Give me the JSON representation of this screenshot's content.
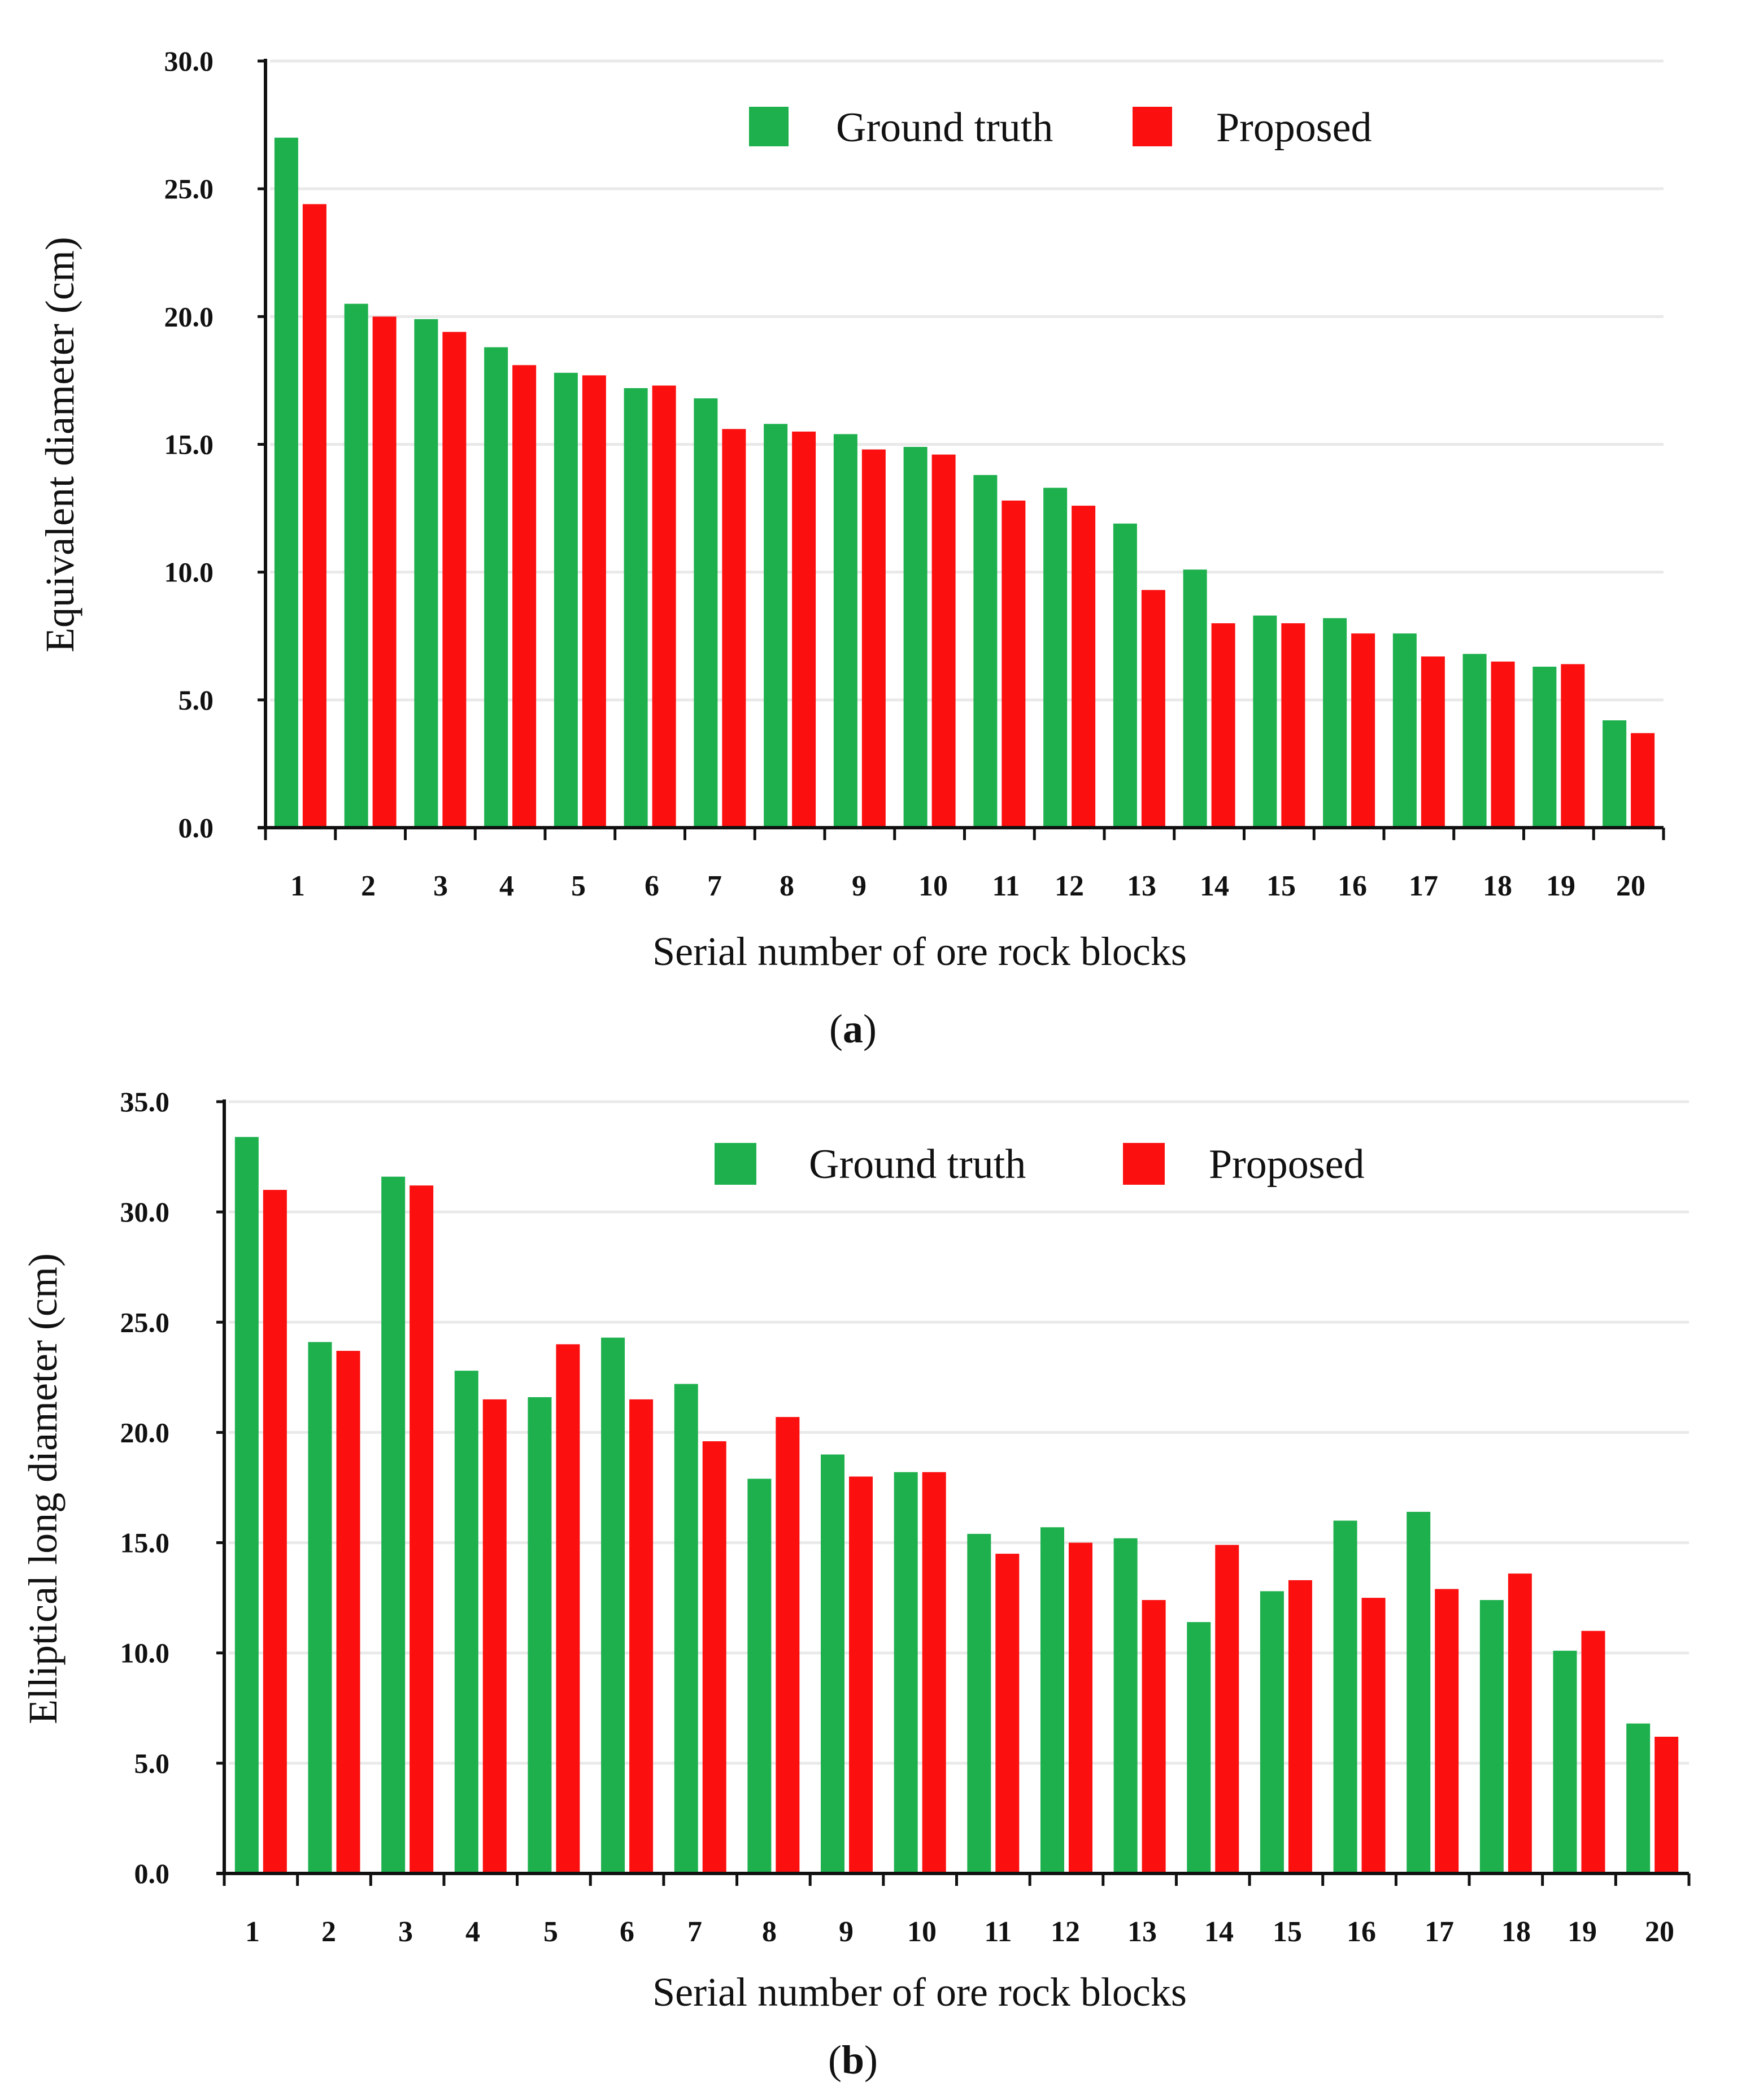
{
  "colors": {
    "ground_truth": "#1db04d",
    "proposed": "#fb0f0f",
    "grid": "#e9e9e9",
    "axis": "#111111"
  },
  "chart_data": [
    {
      "type": "bar",
      "panel_label": "a",
      "title": "",
      "xlabel": "Serial number of ore rock blocks",
      "ylabel": "Equivalent diameter (cm)",
      "ylim": [
        0,
        30
      ],
      "yticks": [
        "0.0",
        "5.0",
        "10.0",
        "15.0",
        "20.0",
        "25.0",
        "30.0"
      ],
      "grid": true,
      "legend_position": "top-right",
      "categories": [
        "1",
        "2",
        "3",
        "4",
        "5",
        "6",
        "7",
        "8",
        "9",
        "10",
        "11",
        "12",
        "13",
        "14",
        "15",
        "16",
        "17",
        "18",
        "19",
        "20"
      ],
      "series": [
        {
          "name": "Ground truth",
          "values": [
            27.0,
            20.5,
            19.9,
            18.8,
            17.8,
            17.2,
            16.8,
            15.8,
            15.4,
            14.9,
            13.8,
            13.3,
            11.9,
            10.1,
            8.3,
            8.2,
            7.6,
            6.8,
            6.3,
            4.2
          ]
        },
        {
          "name": "Proposed",
          "values": [
            24.4,
            20.0,
            19.4,
            18.1,
            17.7,
            17.3,
            15.6,
            15.5,
            14.8,
            14.6,
            12.8,
            12.6,
            9.3,
            8.0,
            8.0,
            7.6,
            6.7,
            6.5,
            6.4,
            3.7
          ]
        }
      ]
    },
    {
      "type": "bar",
      "panel_label": "b",
      "title": "",
      "xlabel": "Serial number of ore rock blocks",
      "ylabel": "Elliptical long diameter (cm)",
      "ylim": [
        0,
        35
      ],
      "yticks": [
        "0.0",
        "5.0",
        "10.0",
        "15.0",
        "20.0",
        "25.0",
        "30.0",
        "35.0"
      ],
      "grid": true,
      "legend_position": "top-right",
      "categories": [
        "1",
        "2",
        "3",
        "4",
        "5",
        "6",
        "7",
        "8",
        "9",
        "10",
        "11",
        "12",
        "13",
        "14",
        "15",
        "16",
        "17",
        "18",
        "19",
        "20"
      ],
      "series": [
        {
          "name": "Ground truth",
          "values": [
            33.4,
            24.1,
            31.6,
            22.8,
            21.6,
            24.3,
            22.2,
            17.9,
            19.0,
            18.2,
            15.4,
            15.7,
            15.2,
            11.4,
            12.8,
            16.0,
            16.4,
            12.4,
            10.1,
            6.8
          ]
        },
        {
          "name": "Proposed",
          "values": [
            31.0,
            23.7,
            31.2,
            21.5,
            24.0,
            21.5,
            19.6,
            20.7,
            18.0,
            18.2,
            14.5,
            15.0,
            12.4,
            14.9,
            13.3,
            12.5,
            12.9,
            13.6,
            11.0,
            6.2
          ]
        }
      ]
    }
  ]
}
